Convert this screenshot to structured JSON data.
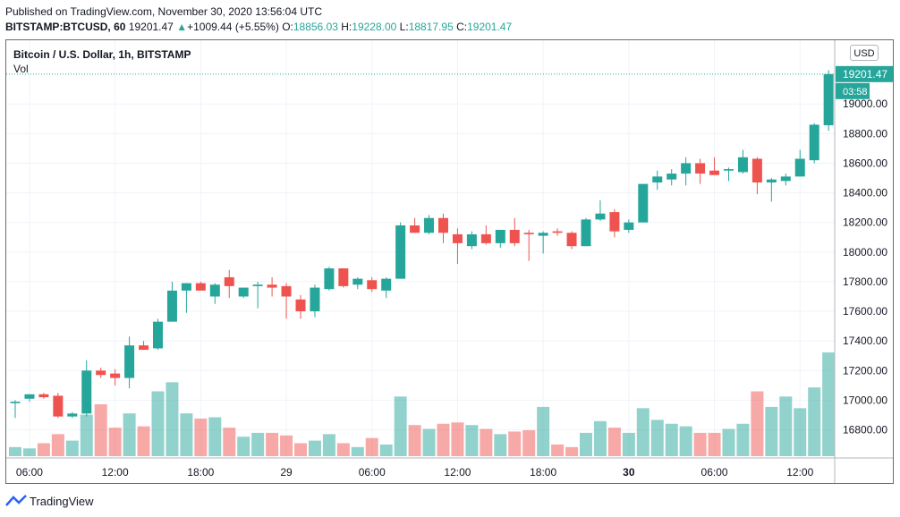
{
  "header": {
    "published": "Published on TradingView.com, November 30, 2020 13:56:04 UTC",
    "symbol": "BITSTAMP:BTCUSD, 60",
    "last": "19201.47",
    "arrow": "▲",
    "change": "+1009.44 (+5.55%)",
    "o_label": "O:",
    "o": "18856.03",
    "h_label": "H:",
    "h": "19228.00",
    "l_label": "L:",
    "l": "18817.95",
    "c_label": "C:",
    "c": "19201.47"
  },
  "legend": {
    "title": "Bitcoin / U.S. Dollar, 1h, BITSTAMP",
    "vol": "Vol"
  },
  "currency_badge": "USD",
  "brand": {
    "name": "TradingView"
  },
  "chart_data": {
    "type": "candlestick",
    "y_ticks": [
      16800,
      17000,
      17200,
      17400,
      17600,
      17800,
      18000,
      18200,
      18400,
      18600,
      18800,
      19000
    ],
    "ylim": [
      16610,
      19430
    ],
    "x_ticks": [
      {
        "label": "06:00",
        "index": 1
      },
      {
        "label": "12:00",
        "index": 7
      },
      {
        "label": "18:00",
        "index": 13
      },
      {
        "label": "29",
        "index": 19,
        "bold": false
      },
      {
        "label": "06:00",
        "index": 25
      },
      {
        "label": "12:00",
        "index": 31
      },
      {
        "label": "18:00",
        "index": 37
      },
      {
        "label": "30",
        "index": 43,
        "bold": true
      },
      {
        "label": "06:00",
        "index": 49
      },
      {
        "label": "12:00",
        "index": 55
      }
    ],
    "last_price_label": "19201.47",
    "countdown_label": "03:58",
    "colors": {
      "up": "#26a69a",
      "down": "#ef5350",
      "vol_up": "#26a69a",
      "vol_down": "#ef5350"
    },
    "candles": [
      {
        "o": 16980,
        "h": 17000,
        "l": 16880,
        "c": 16990,
        "v": 7
      },
      {
        "o": 17010,
        "h": 17040,
        "l": 16990,
        "c": 17040,
        "v": 6
      },
      {
        "o": 17040,
        "h": 17050,
        "l": 17010,
        "c": 17020,
        "v": 10
      },
      {
        "o": 17030,
        "h": 17050,
        "l": 16880,
        "c": 16890,
        "v": 17
      },
      {
        "o": 16890,
        "h": 16920,
        "l": 16880,
        "c": 16910,
        "v": 12
      },
      {
        "o": 16910,
        "h": 17270,
        "l": 16890,
        "c": 17200,
        "v": 32
      },
      {
        "o": 17200,
        "h": 17220,
        "l": 17150,
        "c": 17170,
        "v": 40
      },
      {
        "o": 17180,
        "h": 17210,
        "l": 17100,
        "c": 17150,
        "v": 22
      },
      {
        "o": 17150,
        "h": 17430,
        "l": 17080,
        "c": 17370,
        "v": 33
      },
      {
        "o": 17370,
        "h": 17400,
        "l": 17340,
        "c": 17340,
        "v": 23
      },
      {
        "o": 17350,
        "h": 17550,
        "l": 17340,
        "c": 17530,
        "v": 50
      },
      {
        "o": 17530,
        "h": 17800,
        "l": 17530,
        "c": 17740,
        "v": 57
      },
      {
        "o": 17740,
        "h": 17790,
        "l": 17590,
        "c": 17790,
        "v": 33
      },
      {
        "o": 17790,
        "h": 17800,
        "l": 17750,
        "c": 17740,
        "v": 29
      },
      {
        "o": 17700,
        "h": 17790,
        "l": 17650,
        "c": 17780,
        "v": 30
      },
      {
        "o": 17830,
        "h": 17880,
        "l": 17690,
        "c": 17770,
        "v": 22
      },
      {
        "o": 17700,
        "h": 17760,
        "l": 17690,
        "c": 17760,
        "v": 15
      },
      {
        "o": 17770,
        "h": 17800,
        "l": 17620,
        "c": 17780,
        "v": 18
      },
      {
        "o": 17780,
        "h": 17830,
        "l": 17700,
        "c": 17760,
        "v": 18
      },
      {
        "o": 17770,
        "h": 17790,
        "l": 17550,
        "c": 17700,
        "v": 16
      },
      {
        "o": 17680,
        "h": 17710,
        "l": 17550,
        "c": 17600,
        "v": 10
      },
      {
        "o": 17600,
        "h": 17780,
        "l": 17560,
        "c": 17760,
        "v": 12
      },
      {
        "o": 17750,
        "h": 17900,
        "l": 17740,
        "c": 17890,
        "v": 17
      },
      {
        "o": 17890,
        "h": 17890,
        "l": 17760,
        "c": 17770,
        "v": 10
      },
      {
        "o": 17780,
        "h": 17830,
        "l": 17750,
        "c": 17820,
        "v": 7
      },
      {
        "o": 17810,
        "h": 17830,
        "l": 17730,
        "c": 17750,
        "v": 14
      },
      {
        "o": 17740,
        "h": 17830,
        "l": 17690,
        "c": 17820,
        "v": 9
      },
      {
        "o": 17820,
        "h": 18200,
        "l": 17820,
        "c": 18180,
        "v": 46
      },
      {
        "o": 18180,
        "h": 18230,
        "l": 18130,
        "c": 18130,
        "v": 24
      },
      {
        "o": 18130,
        "h": 18250,
        "l": 18120,
        "c": 18230,
        "v": 21
      },
      {
        "o": 18230,
        "h": 18260,
        "l": 18060,
        "c": 18130,
        "v": 25
      },
      {
        "o": 18120,
        "h": 18160,
        "l": 17920,
        "c": 18060,
        "v": 26
      },
      {
        "o": 18040,
        "h": 18140,
        "l": 18020,
        "c": 18120,
        "v": 24
      },
      {
        "o": 18120,
        "h": 18180,
        "l": 18050,
        "c": 18060,
        "v": 21
      },
      {
        "o": 18060,
        "h": 18150,
        "l": 18030,
        "c": 18150,
        "v": 17
      },
      {
        "o": 18150,
        "h": 18230,
        "l": 18040,
        "c": 18060,
        "v": 19
      },
      {
        "o": 18130,
        "h": 18150,
        "l": 17940,
        "c": 18120,
        "v": 20
      },
      {
        "o": 18110,
        "h": 18140,
        "l": 17990,
        "c": 18130,
        "v": 38
      },
      {
        "o": 18140,
        "h": 18160,
        "l": 18110,
        "c": 18130,
        "v": 9
      },
      {
        "o": 18130,
        "h": 18140,
        "l": 18020,
        "c": 18040,
        "v": 7
      },
      {
        "o": 18040,
        "h": 18230,
        "l": 18040,
        "c": 18220,
        "v": 18
      },
      {
        "o": 18220,
        "h": 18350,
        "l": 18210,
        "c": 18260,
        "v": 27
      },
      {
        "o": 18270,
        "h": 18290,
        "l": 18100,
        "c": 18140,
        "v": 22
      },
      {
        "o": 18150,
        "h": 18220,
        "l": 18130,
        "c": 18200,
        "v": 18
      },
      {
        "o": 18200,
        "h": 18460,
        "l": 18200,
        "c": 18460,
        "v": 37
      },
      {
        "o": 18470,
        "h": 18550,
        "l": 18420,
        "c": 18510,
        "v": 28
      },
      {
        "o": 18490,
        "h": 18560,
        "l": 18450,
        "c": 18530,
        "v": 25
      },
      {
        "o": 18530,
        "h": 18640,
        "l": 18450,
        "c": 18600,
        "v": 23
      },
      {
        "o": 18600,
        "h": 18630,
        "l": 18460,
        "c": 18530,
        "v": 18
      },
      {
        "o": 18550,
        "h": 18640,
        "l": 18520,
        "c": 18520,
        "v": 18
      },
      {
        "o": 18550,
        "h": 18570,
        "l": 18480,
        "c": 18560,
        "v": 21
      },
      {
        "o": 18540,
        "h": 18690,
        "l": 18530,
        "c": 18640,
        "v": 25
      },
      {
        "o": 18630,
        "h": 18640,
        "l": 18390,
        "c": 18470,
        "v": 50
      },
      {
        "o": 18470,
        "h": 18500,
        "l": 18340,
        "c": 18490,
        "v": 38
      },
      {
        "o": 18480,
        "h": 18530,
        "l": 18450,
        "c": 18510,
        "v": 46
      },
      {
        "o": 18510,
        "h": 18690,
        "l": 18510,
        "c": 18630,
        "v": 37
      },
      {
        "o": 18620,
        "h": 18870,
        "l": 18600,
        "c": 18860,
        "v": 53
      },
      {
        "o": 18856.03,
        "h": 19228,
        "l": 18817.95,
        "c": 19201.47,
        "v": 80
      }
    ]
  }
}
